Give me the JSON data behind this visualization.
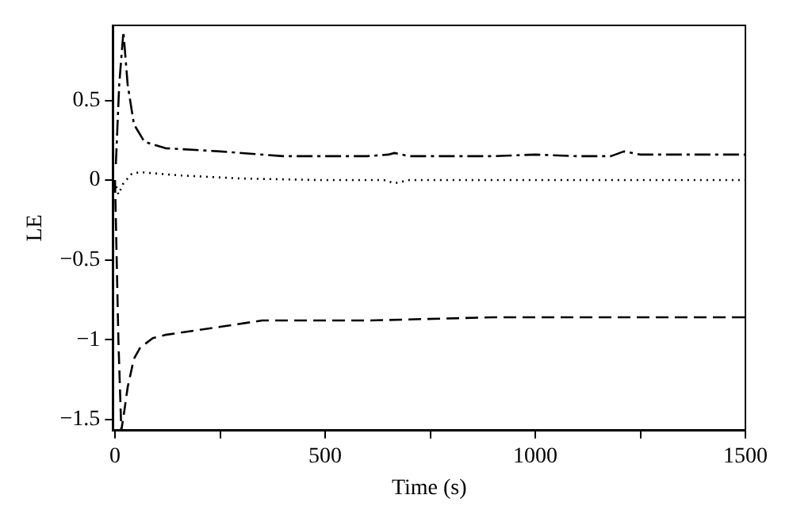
{
  "chart_data": {
    "type": "line",
    "xlabel": "Time (s)",
    "ylabel": "LE",
    "xlim": [
      -5,
      1500
    ],
    "ylim": [
      -1.57,
      0.97
    ],
    "xticks": [
      0,
      {
        "value": 250,
        "label": null
      },
      500,
      {
        "value": 750,
        "label": null
      },
      1000,
      {
        "value": 1250,
        "label": null
      },
      1500
    ],
    "yticks": [
      -1.5,
      -1,
      -0.5,
      0,
      0.5
    ],
    "grid": false,
    "legend": false,
    "marker": "none",
    "series": [
      {
        "color": "#000000",
        "line_style": "dashdot",
        "x": [
          2,
          10,
          20,
          30,
          45,
          70,
          120,
          250,
          400,
          600,
          650,
          665,
          700,
          900,
          1000,
          1100,
          1180,
          1211,
          1250,
          1350,
          1500
        ],
        "values": [
          0.1,
          0.6,
          0.93,
          0.6,
          0.35,
          0.24,
          0.2,
          0.18,
          0.15,
          0.15,
          0.16,
          0.17,
          0.15,
          0.15,
          0.16,
          0.15,
          0.15,
          0.18,
          0.16,
          0.16,
          0.16
        ]
      },
      {
        "color": "#000000",
        "line_style": "dotted",
        "x": [
          3,
          8,
          20,
          40,
          60,
          150,
          300,
          500,
          640,
          665,
          700,
          1000,
          1500
        ],
        "values": [
          -0.04,
          -0.09,
          -0.02,
          0.04,
          0.05,
          0.03,
          0.01,
          0,
          0,
          -0.02,
          0,
          0,
          0
        ]
      },
      {
        "color": "#000000",
        "line_style": "dashed",
        "x": [
          0,
          8,
          15,
          22,
          30,
          45,
          60,
          90,
          120,
          250,
          350,
          600,
          900,
          1000,
          1200,
          1500
        ],
        "values": [
          0,
          -1.0,
          -1.57,
          -1.45,
          -1.3,
          -1.12,
          -1.05,
          -0.99,
          -0.97,
          -0.92,
          -0.88,
          -0.88,
          -0.86,
          -0.86,
          -0.86,
          -0.86
        ]
      }
    ]
  }
}
